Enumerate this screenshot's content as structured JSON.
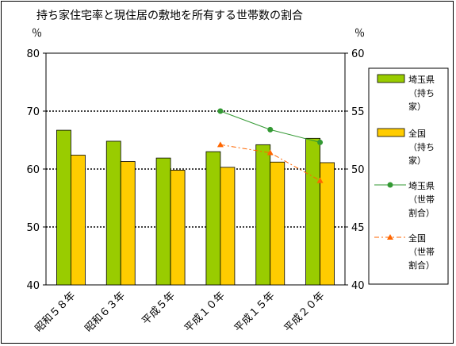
{
  "chart_data": {
    "type": "bar",
    "title": "持ち家住宅率と現住居の敷地を所有する世帯数の割合",
    "categories": [
      "昭和５８年",
      "昭和６３年",
      "平成５年",
      "平成１０年",
      "平成１５年",
      "平成２０年"
    ],
    "y_left": {
      "unit": "％",
      "min": 40,
      "max": 80,
      "ticks": [
        40,
        50,
        60,
        70,
        80
      ]
    },
    "y_right": {
      "unit": "％",
      "min": 40,
      "max": 60,
      "ticks": [
        40,
        45,
        50,
        55,
        60
      ]
    },
    "grid": true,
    "legend_position": "right",
    "series": [
      {
        "name": "埼玉県（持ち家）",
        "legend_lines": [
          "埼玉県",
          "（持ち",
          "家）"
        ],
        "kind": "bar",
        "axis": "left",
        "color": "#99CC00",
        "values": [
          66.7,
          64.8,
          61.9,
          63.0,
          64.2,
          65.3
        ]
      },
      {
        "name": "全国（持ち家）",
        "legend_lines": [
          "全国",
          "（持ち",
          "家）"
        ],
        "kind": "bar",
        "axis": "left",
        "color": "#FFCC00",
        "values": [
          62.4,
          61.3,
          59.8,
          60.3,
          61.2,
          61.1
        ]
      },
      {
        "name": "埼玉県（世帯割合）",
        "legend_lines": [
          "埼玉県",
          "（世帯",
          "割合）"
        ],
        "kind": "line",
        "axis": "right",
        "color": "#339933",
        "marker": "circle",
        "dashed": false,
        "values": [
          null,
          null,
          null,
          55.0,
          53.4,
          52.3
        ]
      },
      {
        "name": "全国（世帯割合）",
        "legend_lines": [
          "全国",
          "（世帯",
          "割合）"
        ],
        "kind": "line",
        "axis": "right",
        "color": "#FF6600",
        "marker": "triangle",
        "dashed": true,
        "values": [
          null,
          null,
          null,
          52.1,
          51.4,
          49.0
        ]
      }
    ]
  }
}
